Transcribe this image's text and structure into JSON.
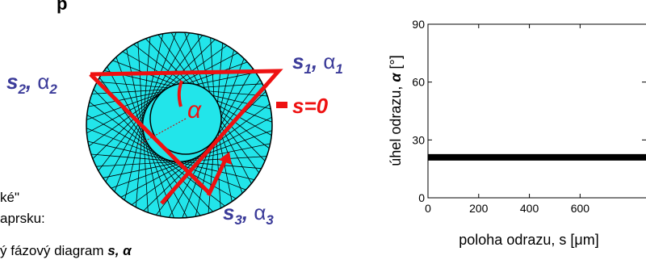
{
  "slide": {
    "heading_fragment": "p",
    "lines": [
      "ké\"",
      "aprsku:"
    ],
    "last_line": "ý fázový diagram ",
    "last_line_symbol": "s, α",
    "diagram": {
      "alpha": "α",
      "s_zero": "s=0",
      "points": [
        {
          "s": "s",
          "s_sub": "1",
          "sep": ", ",
          "alpha": "α",
          "alpha_sub": "1"
        },
        {
          "s": "s",
          "s_sub": "2",
          "sep": ", ",
          "alpha": "α",
          "alpha_sub": "2"
        },
        {
          "s": "s",
          "s_sub": "3",
          "sep": ", ",
          "alpha": "α",
          "alpha_sub": "3"
        }
      ]
    }
  },
  "chart_data": {
    "type": "line",
    "xlabel": "poloha odrazu, s [μm]",
    "ylabel": "úhel odrazu, ",
    "ylabel_symbol": "α",
    "ylabel_unit": " [°]",
    "x": [
      0,
      860
    ],
    "series": [
      {
        "name": null,
        "color": "#000000",
        "values": [
          21,
          21
        ]
      }
    ],
    "xlim": [
      0,
      860
    ],
    "ylim": [
      0,
      90
    ],
    "xticks": [
      0,
      200,
      400,
      600
    ],
    "yticks": [
      0,
      30,
      60,
      90
    ],
    "grid": false
  }
}
